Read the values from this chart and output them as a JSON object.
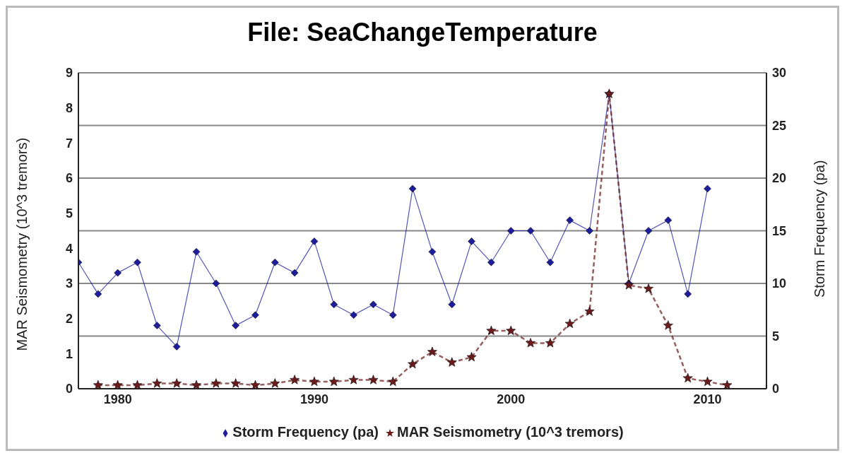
{
  "chart_data": {
    "type": "line",
    "title": "File: SeaChangeTemperature",
    "ylabel": "MAR Seismometry (10^3 tremors)",
    "y2label": "Storm Frequency (pa)",
    "xlim": [
      1978,
      2013
    ],
    "xticks": [
      1980,
      1990,
      2000,
      2010
    ],
    "ylim": [
      0,
      9
    ],
    "yticks": [
      0,
      1,
      2,
      3,
      4,
      5,
      6,
      7,
      8,
      9
    ],
    "y2lim": [
      0,
      30
    ],
    "y2ticks": [
      0,
      5,
      10,
      15,
      20,
      25,
      30
    ],
    "grid": "y",
    "legend": "bottom",
    "series": [
      {
        "name": "Storm Frequency (pa)",
        "color": "#1c1c9c",
        "axis": "y2",
        "marker": "diamond",
        "line_style": "solid",
        "x": [
          1978,
          1979,
          1980,
          1981,
          1982,
          1983,
          1984,
          1985,
          1986,
          1987,
          1988,
          1989,
          1990,
          1991,
          1992,
          1993,
          1994,
          1995,
          1996,
          1997,
          1998,
          1999,
          2000,
          2001,
          2002,
          2003,
          2004,
          2005,
          2006,
          2007,
          2008,
          2009,
          2010
        ],
        "values": [
          12,
          9,
          11,
          12,
          6,
          4,
          13,
          10,
          6,
          7,
          12,
          11,
          14,
          8,
          7,
          8,
          7,
          19,
          13,
          8,
          14,
          12,
          15,
          15,
          12,
          16,
          15,
          28,
          10,
          15,
          16,
          9,
          19
        ]
      },
      {
        "name": "MAR Seismometry (10^3 tremors)",
        "color": "#6a1a1a",
        "axis": "y",
        "marker": "star",
        "line_style": "dashed",
        "x": [
          1979,
          1980,
          1981,
          1982,
          1983,
          1984,
          1985,
          1986,
          1987,
          1988,
          1989,
          1990,
          1991,
          1992,
          1993,
          1994,
          1995,
          1996,
          1997,
          1998,
          1999,
          2000,
          2001,
          2002,
          2003,
          2004,
          2005,
          2006,
          2007,
          2008,
          2009,
          2010,
          2011
        ],
        "values": [
          0.1,
          0.1,
          0.1,
          0.15,
          0.15,
          0.1,
          0.15,
          0.15,
          0.1,
          0.15,
          0.25,
          0.2,
          0.2,
          0.25,
          0.25,
          0.2,
          0.7,
          1.05,
          0.75,
          0.9,
          1.65,
          1.65,
          1.3,
          1.3,
          1.85,
          2.2,
          8.4,
          2.95,
          2.85,
          1.8,
          0.3,
          0.2,
          0.1
        ]
      }
    ]
  }
}
